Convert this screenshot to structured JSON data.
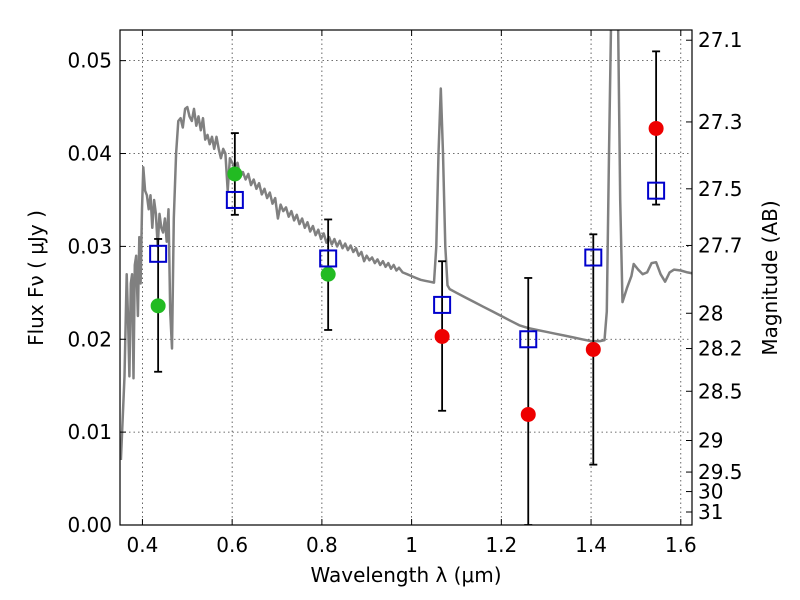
{
  "chart_data": {
    "type": "scatter",
    "xlabel": "Wavelength  λ (μm)",
    "ylabel": "Flux  Fν  ( μJy )",
    "y2label": "Magnitude (AB)",
    "xlim": [
      0.35,
      1.625
    ],
    "ylim": [
      0.0,
      0.0533
    ],
    "xticks": [
      0.4,
      0.6,
      0.8,
      1.0,
      1.2,
      1.4,
      1.6
    ],
    "xticklabels": [
      "0.4",
      "0.6",
      "0.8",
      "1",
      "1.2",
      "1.4",
      "1.6"
    ],
    "yticks": [
      0.0,
      0.01,
      0.02,
      0.03,
      0.04,
      0.05
    ],
    "yticklabels": [
      "0.00",
      "0.01",
      "0.02",
      "0.03",
      "0.04",
      "0.05"
    ],
    "y2ticks": [
      {
        "label": "27.1",
        "flux": 0.0522
      },
      {
        "label": "27.3",
        "flux": 0.0434
      },
      {
        "label": "27.5",
        "flux": 0.0362
      },
      {
        "label": "27.7",
        "flux": 0.0301
      },
      {
        "label": "28",
        "flux": 0.0228
      },
      {
        "label": "28.2",
        "flux": 0.019
      },
      {
        "label": "28.5",
        "flux": 0.0144
      },
      {
        "label": "29",
        "flux": 0.0091
      },
      {
        "label": "29.5",
        "flux": 0.0057
      },
      {
        "label": "30",
        "flux": 0.0036
      },
      {
        "label": "31",
        "flux": 0.0014
      }
    ],
    "grid": true,
    "colors": {
      "model": "#808080",
      "green": "#22bb22",
      "red": "#ee0000",
      "square": "#0000cc",
      "errorbar": "#000000"
    },
    "observed": [
      {
        "x": 0.435,
        "y": 0.0236,
        "yerr_low": 0.0165,
        "yerr_high": 0.0308,
        "color": "green"
      },
      {
        "x": 0.606,
        "y": 0.0378,
        "yerr_low": 0.0334,
        "yerr_high": 0.0422,
        "color": "green"
      },
      {
        "x": 0.814,
        "y": 0.027,
        "yerr_low": 0.021,
        "yerr_high": 0.0329,
        "color": "green"
      },
      {
        "x": 1.068,
        "y": 0.0203,
        "yerr_low": 0.0123,
        "yerr_high": 0.0284,
        "color": "red"
      },
      {
        "x": 1.26,
        "y": 0.0119,
        "yerr_low": 0.0,
        "yerr_high": 0.0266,
        "color": "red"
      },
      {
        "x": 1.405,
        "y": 0.0189,
        "yerr_low": 0.0065,
        "yerr_high": 0.0313,
        "color": "red"
      },
      {
        "x": 1.545,
        "y": 0.0427,
        "yerr_low": 0.0345,
        "yerr_high": 0.051,
        "color": "red"
      }
    ],
    "model_photometry": [
      {
        "x": 0.435,
        "y": 0.0292
      },
      {
        "x": 0.606,
        "y": 0.035
      },
      {
        "x": 0.814,
        "y": 0.0287
      },
      {
        "x": 1.068,
        "y": 0.0237
      },
      {
        "x": 1.26,
        "y": 0.02
      },
      {
        "x": 1.405,
        "y": 0.0288
      },
      {
        "x": 1.545,
        "y": 0.036
      }
    ],
    "model_spectrum": [
      [
        0.352,
        0.007
      ],
      [
        0.36,
        0.016
      ],
      [
        0.365,
        0.027
      ],
      [
        0.368,
        0.022
      ],
      [
        0.371,
        0.016
      ],
      [
        0.374,
        0.026
      ],
      [
        0.377,
        0.027
      ],
      [
        0.38,
        0.0158
      ],
      [
        0.383,
        0.028
      ],
      [
        0.386,
        0.029
      ],
      [
        0.39,
        0.0225
      ],
      [
        0.393,
        0.031
      ],
      [
        0.396,
        0.026
      ],
      [
        0.399,
        0.034
      ],
      [
        0.402,
        0.0385
      ],
      [
        0.406,
        0.036
      ],
      [
        0.41,
        0.0355
      ],
      [
        0.414,
        0.034
      ],
      [
        0.418,
        0.0355
      ],
      [
        0.422,
        0.032
      ],
      [
        0.426,
        0.035
      ],
      [
        0.43,
        0.0335
      ],
      [
        0.434,
        0.03
      ],
      [
        0.438,
        0.0335
      ],
      [
        0.442,
        0.032
      ],
      [
        0.446,
        0.0315
      ],
      [
        0.45,
        0.033
      ],
      [
        0.454,
        0.0305
      ],
      [
        0.458,
        0.034
      ],
      [
        0.462,
        0.023
      ],
      [
        0.466,
        0.019
      ],
      [
        0.47,
        0.033
      ],
      [
        0.475,
        0.04
      ],
      [
        0.48,
        0.0435
      ],
      [
        0.485,
        0.0438
      ],
      [
        0.49,
        0.0428
      ],
      [
        0.495,
        0.0448
      ],
      [
        0.5,
        0.045
      ],
      [
        0.505,
        0.044
      ],
      [
        0.51,
        0.0435
      ],
      [
        0.515,
        0.0448
      ],
      [
        0.52,
        0.043
      ],
      [
        0.525,
        0.044
      ],
      [
        0.53,
        0.0425
      ],
      [
        0.535,
        0.0438
      ],
      [
        0.54,
        0.0415
      ],
      [
        0.545,
        0.042
      ],
      [
        0.55,
        0.041
      ],
      [
        0.555,
        0.0418
      ],
      [
        0.56,
        0.0405
      ],
      [
        0.565,
        0.0418
      ],
      [
        0.57,
        0.0405
      ],
      [
        0.575,
        0.0395
      ],
      [
        0.58,
        0.0405
      ],
      [
        0.585,
        0.04
      ],
      [
        0.59,
        0.036
      ],
      [
        0.595,
        0.0395
      ],
      [
        0.6,
        0.039
      ],
      [
        0.606,
        0.0385
      ],
      [
        0.612,
        0.039
      ],
      [
        0.618,
        0.0375
      ],
      [
        0.624,
        0.038
      ],
      [
        0.63,
        0.0372
      ],
      [
        0.636,
        0.0378
      ],
      [
        0.642,
        0.0366
      ],
      [
        0.648,
        0.0372
      ],
      [
        0.654,
        0.0362
      ],
      [
        0.66,
        0.0368
      ],
      [
        0.666,
        0.0356
      ],
      [
        0.672,
        0.0362
      ],
      [
        0.678,
        0.0352
      ],
      [
        0.684,
        0.0358
      ],
      [
        0.69,
        0.0346
      ],
      [
        0.696,
        0.0352
      ],
      [
        0.702,
        0.033
      ],
      [
        0.708,
        0.0345
      ],
      [
        0.714,
        0.0338
      ],
      [
        0.72,
        0.0342
      ],
      [
        0.726,
        0.0332
      ],
      [
        0.732,
        0.0338
      ],
      [
        0.738,
        0.0328
      ],
      [
        0.744,
        0.0334
      ],
      [
        0.75,
        0.0324
      ],
      [
        0.756,
        0.033
      ],
      [
        0.762,
        0.032
      ],
      [
        0.768,
        0.0326
      ],
      [
        0.774,
        0.0316
      ],
      [
        0.78,
        0.0322
      ],
      [
        0.786,
        0.0312
      ],
      [
        0.792,
        0.0318
      ],
      [
        0.798,
        0.0308
      ],
      [
        0.804,
        0.0314
      ],
      [
        0.81,
        0.0304
      ],
      [
        0.816,
        0.031
      ],
      [
        0.822,
        0.0302
      ],
      [
        0.828,
        0.0308
      ],
      [
        0.834,
        0.03
      ],
      [
        0.84,
        0.0306
      ],
      [
        0.846,
        0.0298
      ],
      [
        0.852,
        0.0303
      ],
      [
        0.858,
        0.0296
      ],
      [
        0.864,
        0.0301
      ],
      [
        0.87,
        0.0294
      ],
      [
        0.876,
        0.0298
      ],
      [
        0.882,
        0.029
      ],
      [
        0.888,
        0.0294
      ],
      [
        0.894,
        0.0284
      ],
      [
        0.9,
        0.029
      ],
      [
        0.906,
        0.0285
      ],
      [
        0.912,
        0.0288
      ],
      [
        0.918,
        0.0282
      ],
      [
        0.924,
        0.0286
      ],
      [
        0.93,
        0.028
      ],
      [
        0.936,
        0.0284
      ],
      [
        0.942,
        0.0278
      ],
      [
        0.948,
        0.0282
      ],
      [
        0.954,
        0.0276
      ],
      [
        0.96,
        0.028
      ],
      [
        0.966,
        0.0274
      ],
      [
        0.972,
        0.0277
      ],
      [
        0.98,
        0.0272
      ],
      [
        0.99,
        0.027
      ],
      [
        1.0,
        0.0268
      ],
      [
        1.01,
        0.0266
      ],
      [
        1.02,
        0.0264
      ],
      [
        1.03,
        0.0263
      ],
      [
        1.04,
        0.0262
      ],
      [
        1.05,
        0.0261
      ],
      [
        1.055,
        0.03
      ],
      [
        1.06,
        0.04
      ],
      [
        1.065,
        0.047
      ],
      [
        1.07,
        0.04
      ],
      [
        1.075,
        0.03
      ],
      [
        1.08,
        0.0258
      ],
      [
        1.085,
        0.0254
      ],
      [
        1.1,
        0.025
      ],
      [
        1.12,
        0.0245
      ],
      [
        1.14,
        0.024
      ],
      [
        1.16,
        0.0235
      ],
      [
        1.18,
        0.023
      ],
      [
        1.2,
        0.0225
      ],
      [
        1.22,
        0.022
      ],
      [
        1.24,
        0.0215
      ],
      [
        1.26,
        0.0212
      ],
      [
        1.28,
        0.021
      ],
      [
        1.3,
        0.0208
      ],
      [
        1.32,
        0.0206
      ],
      [
        1.34,
        0.0204
      ],
      [
        1.36,
        0.0202
      ],
      [
        1.38,
        0.02
      ],
      [
        1.4,
        0.0198
      ],
      [
        1.42,
        0.0198
      ],
      [
        1.43,
        0.0199
      ],
      [
        1.435,
        0.023
      ],
      [
        1.44,
        0.04
      ],
      [
        1.445,
        0.055
      ],
      [
        1.46,
        0.055
      ],
      [
        1.465,
        0.035
      ],
      [
        1.47,
        0.024
      ],
      [
        1.48,
        0.0255
      ],
      [
        1.49,
        0.0268
      ],
      [
        1.495,
        0.0281
      ],
      [
        1.505,
        0.0275
      ],
      [
        1.515,
        0.027
      ],
      [
        1.525,
        0.0272
      ],
      [
        1.535,
        0.0282
      ],
      [
        1.545,
        0.0283
      ],
      [
        1.555,
        0.027
      ],
      [
        1.565,
        0.0262
      ],
      [
        1.575,
        0.0272
      ],
      [
        1.585,
        0.0275
      ],
      [
        1.6,
        0.0274
      ],
      [
        1.615,
        0.0272
      ],
      [
        1.625,
        0.0271
      ]
    ]
  }
}
